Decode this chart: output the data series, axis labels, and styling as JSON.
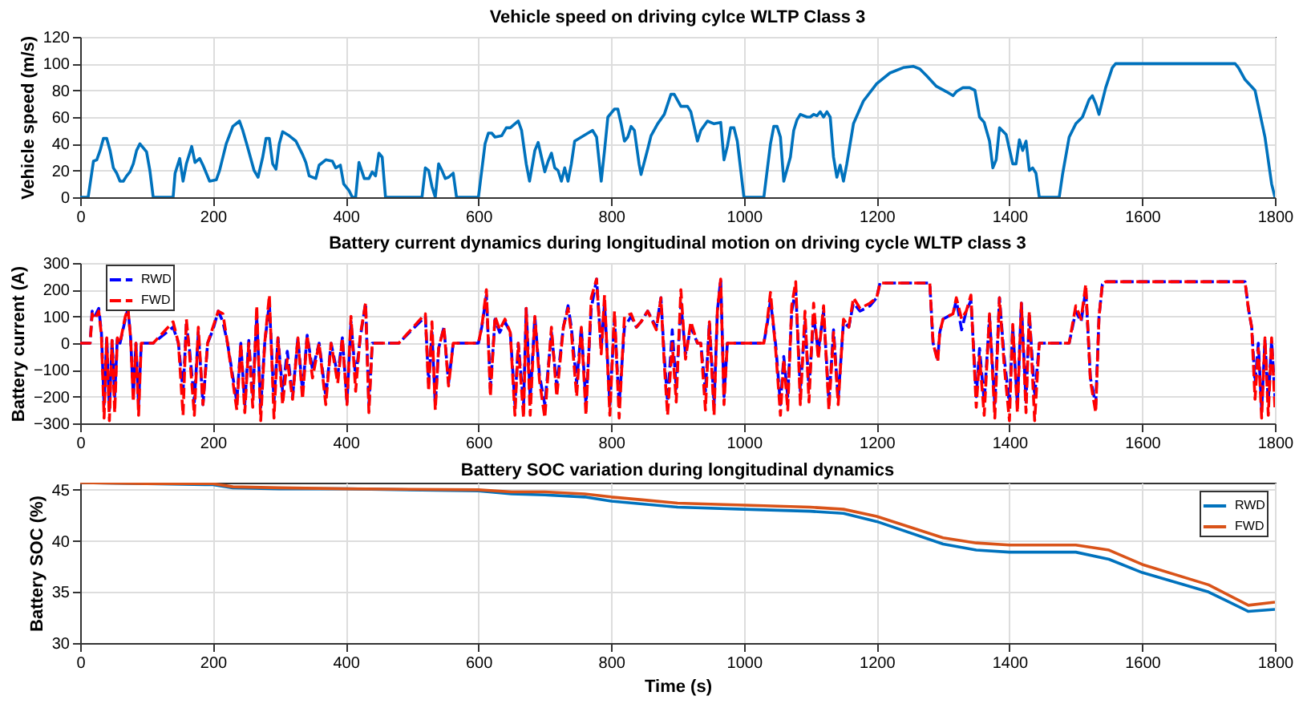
{
  "chart_data": [
    {
      "type": "line",
      "title": "Vehicle speed on driving cylce WLTP Class 3",
      "ylabel": "Vehicle speed (m/s)",
      "xlim": [
        0,
        1800
      ],
      "xticks": [
        0,
        200,
        400,
        600,
        800,
        1000,
        1200,
        1400,
        1600,
        1800
      ],
      "ylim": [
        0,
        120
      ],
      "yticks": [
        0,
        20,
        40,
        60,
        80,
        100,
        120
      ],
      "grid": true,
      "legend": false,
      "marker": "none",
      "series": [
        {
          "color": "#0072bd",
          "line_style": "solid",
          "x": [
            0,
            12,
            20,
            25,
            30,
            35,
            40,
            45,
            50,
            55,
            60,
            65,
            70,
            75,
            80,
            85,
            90,
            95,
            100,
            105,
            110,
            140,
            143,
            150,
            155,
            160,
            168,
            173,
            180,
            185,
            195,
            205,
            210,
            220,
            230,
            240,
            245,
            252,
            262,
            268,
            275,
            280,
            285,
            290,
            295,
            300,
            305,
            315,
            325,
            335,
            340,
            345,
            355,
            360,
            370,
            380,
            385,
            392,
            397,
            405,
            410,
            415,
            420,
            428,
            435,
            440,
            445,
            450,
            455,
            460,
            515,
            520,
            525,
            530,
            535,
            540,
            545,
            550,
            555,
            562,
            567,
            600,
            610,
            615,
            620,
            625,
            635,
            642,
            648,
            655,
            660,
            665,
            672,
            677,
            685,
            690,
            695,
            700,
            705,
            710,
            715,
            720,
            725,
            730,
            735,
            740,
            745,
            755,
            765,
            772,
            778,
            785,
            790,
            795,
            805,
            810,
            815,
            820,
            825,
            830,
            835,
            842,
            845,
            855,
            860,
            870,
            880,
            890,
            895,
            905,
            915,
            920,
            930,
            935,
            945,
            955,
            965,
            970,
            975,
            980,
            985,
            990,
            1000,
            1030,
            1040,
            1045,
            1050,
            1055,
            1060,
            1070,
            1075,
            1080,
            1085,
            1095,
            1100,
            1105,
            1110,
            1115,
            1120,
            1125,
            1130,
            1135,
            1140,
            1145,
            1150,
            1155,
            1165,
            1180,
            1200,
            1220,
            1240,
            1255,
            1265,
            1275,
            1290,
            1305,
            1315,
            1320,
            1330,
            1340,
            1348,
            1355,
            1362,
            1370,
            1375,
            1380,
            1385,
            1395,
            1405,
            1410,
            1415,
            1420,
            1425,
            1430,
            1435,
            1440,
            1445,
            1475,
            1480,
            1490,
            1500,
            1510,
            1520,
            1525,
            1530,
            1535,
            1545,
            1555,
            1560,
            1740,
            1745,
            1755,
            1770,
            1785,
            1795,
            1800
          ],
          "values": [
            0,
            0,
            27,
            28,
            35,
            44,
            44,
            35,
            22,
            18,
            12,
            12,
            16,
            19,
            25,
            35,
            40,
            37,
            34,
            20,
            0,
            0,
            18,
            29,
            12,
            25,
            38,
            26,
            29,
            24,
            12,
            13,
            20,
            40,
            53,
            57,
            50,
            38,
            20,
            15,
            30,
            44,
            44,
            25,
            21,
            40,
            49,
            46,
            42,
            32,
            26,
            16,
            14,
            24,
            28,
            27,
            22,
            24,
            10,
            5,
            0,
            0,
            26,
            14,
            14,
            19,
            16,
            33,
            30,
            0,
            0,
            22,
            20,
            8,
            0,
            25,
            20,
            14,
            15,
            18,
            0,
            0,
            40,
            48,
            48,
            45,
            46,
            52,
            52,
            55,
            57,
            50,
            25,
            12,
            35,
            41,
            30,
            19,
            27,
            33,
            22,
            20,
            12,
            22,
            12,
            25,
            42,
            45,
            48,
            50,
            45,
            12,
            35,
            60,
            66,
            66,
            55,
            42,
            45,
            53,
            50,
            25,
            17,
            36,
            46,
            55,
            62,
            77,
            77,
            68,
            68,
            64,
            42,
            50,
            57,
            55,
            56,
            28,
            38,
            52,
            52,
            42,
            0,
            0,
            40,
            53,
            53,
            45,
            12,
            30,
            50,
            58,
            62,
            60,
            60,
            62,
            61,
            64,
            60,
            64,
            60,
            30,
            15,
            24,
            12,
            25,
            55,
            72,
            85,
            93,
            97,
            98,
            96,
            91,
            83,
            79,
            76,
            79,
            82,
            82,
            80,
            60,
            56,
            42,
            22,
            28,
            52,
            47,
            25,
            25,
            43,
            35,
            42,
            20,
            22,
            18,
            0,
            0,
            17,
            45,
            55,
            60,
            73,
            76,
            70,
            62,
            82,
            97,
            100,
            100,
            97,
            88,
            80,
            45,
            10,
            0
          ]
        }
      ]
    },
    {
      "type": "line",
      "title": "Battery current dynamics during longitudinal motion on driving cycle WLTP class 3",
      "ylabel": "Battery current (A)",
      "xlim": [
        0,
        1800
      ],
      "xticks": [
        0,
        200,
        400,
        600,
        800,
        1000,
        1200,
        1400,
        1600,
        1800
      ],
      "ylim": [
        -300,
        300
      ],
      "yticks": [
        -300,
        -200,
        -100,
        0,
        100,
        200,
        300
      ],
      "grid": true,
      "legend": "top left",
      "marker": "none",
      "x": [
        0,
        15,
        18,
        22,
        28,
        32,
        36,
        40,
        44,
        48,
        52,
        56,
        60,
        68,
        72,
        76,
        80,
        84,
        88,
        92,
        110,
        140,
        148,
        155,
        160,
        165,
        172,
        178,
        185,
        192,
        200,
        208,
        215,
        222,
        236,
        242,
        248,
        254,
        260,
        266,
        272,
        278,
        285,
        292,
        298,
        305,
        312,
        320,
        328,
        335,
        342,
        350,
        360,
        370,
        378,
        388,
        395,
        402,
        408,
        415,
        422,
        430,
        435,
        440,
        480,
        520,
        525,
        530,
        535,
        540,
        548,
        555,
        562,
        600,
        605,
        612,
        618,
        625,
        632,
        640,
        648,
        655,
        660,
        668,
        672,
        678,
        685,
        692,
        700,
        710,
        718,
        728,
        735,
        740,
        748,
        755,
        762,
        770,
        778,
        785,
        790,
        798,
        805,
        812,
        820,
        830,
        838,
        845,
        855,
        868,
        875,
        880,
        885,
        892,
        898,
        905,
        912,
        920,
        930,
        935,
        942,
        948,
        955,
        960,
        965,
        970,
        975,
        1030,
        1035,
        1040,
        1048,
        1055,
        1060,
        1066,
        1072,
        1078,
        1085,
        1092,
        1098,
        1105,
        1112,
        1120,
        1128,
        1135,
        1142,
        1150,
        1158,
        1165,
        1175,
        1190,
        1200,
        1205,
        1280,
        1285,
        1292,
        1295,
        1300,
        1315,
        1320,
        1328,
        1335,
        1342,
        1350,
        1355,
        1362,
        1370,
        1378,
        1385,
        1392,
        1400,
        1405,
        1412,
        1418,
        1425,
        1430,
        1438,
        1445,
        1490,
        1500,
        1508,
        1515,
        1522,
        1530,
        1535,
        1540,
        1545,
        1755,
        1760,
        1765,
        1770,
        1775,
        1780,
        1785,
        1790,
        1795,
        1800
      ],
      "series": [
        {
          "name": "RWD",
          "color": "#0000ff",
          "line_style": "dashed",
          "values": [
            0,
            0,
            120,
            100,
            130,
            40,
            -230,
            20,
            -250,
            10,
            -200,
            20,
            0,
            90,
            130,
            20,
            -200,
            0,
            -230,
            0,
            0,
            60,
            0,
            -180,
            70,
            -30,
            -220,
            40,
            -230,
            0,
            50,
            120,
            80,
            0,
            -220,
            0,
            -230,
            10,
            -200,
            100,
            -240,
            0,
            150,
            -220,
            20,
            -180,
            -30,
            -200,
            20,
            -180,
            30,
            -100,
            0,
            -200,
            0,
            -120,
            20,
            -220,
            80,
            -130,
            20,
            150,
            -230,
            0,
            0,
            100,
            -150,
            40,
            -230,
            -20,
            60,
            -150,
            0,
            0,
            60,
            180,
            -170,
            90,
            40,
            80,
            40,
            -230,
            0,
            -230,
            130,
            -210,
            100,
            -120,
            -230,
            40,
            -160,
            60,
            140,
            60,
            -150,
            60,
            -230,
            130,
            240,
            -20,
            150,
            -230,
            90,
            -230,
            60,
            100,
            60,
            80,
            120,
            60,
            170,
            -50,
            -220,
            50,
            -170,
            150,
            -40,
            60,
            0,
            0,
            -180,
            80,
            -230,
            120,
            240,
            -200,
            0,
            0,
            70,
            160,
            -10,
            -230,
            -50,
            -200,
            120,
            200,
            -180,
            80,
            -170,
            100,
            -30,
            120,
            -220,
            50,
            -210,
            80,
            60,
            150,
            120,
            140,
            170,
            225,
            225,
            0,
            -60,
            40,
            90,
            110,
            160,
            50,
            120,
            160,
            -200,
            -20,
            -220,
            100,
            -230,
            170,
            -50,
            -230,
            60,
            -230,
            150,
            -220,
            110,
            -200,
            0,
            0,
            120,
            80,
            200,
            -130,
            -230,
            100,
            220,
            230,
            230,
            130,
            60,
            -150,
            0,
            -250,
            10,
            -220,
            10,
            -200
          ]
        },
        {
          "name": "FWD",
          "color": "#ff0000",
          "line_style": "dashed",
          "values": [
            0,
            0,
            110,
            90,
            120,
            30,
            -280,
            20,
            -290,
            10,
            -260,
            20,
            0,
            100,
            130,
            20,
            -220,
            0,
            -270,
            0,
            0,
            80,
            0,
            -270,
            90,
            -50,
            -270,
            60,
            -230,
            0,
            60,
            120,
            110,
            0,
            -250,
            0,
            -260,
            0,
            -240,
            140,
            -290,
            0,
            180,
            -280,
            20,
            -230,
            -60,
            -210,
            20,
            -210,
            30,
            -130,
            0,
            -230,
            0,
            -150,
            20,
            -230,
            100,
            -180,
            30,
            150,
            -260,
            0,
            0,
            110,
            -180,
            80,
            -250,
            -20,
            60,
            -160,
            0,
            0,
            60,
            200,
            -200,
            100,
            50,
            90,
            40,
            -270,
            0,
            -280,
            130,
            -270,
            100,
            -140,
            -280,
            60,
            -200,
            60,
            130,
            40,
            -200,
            60,
            -270,
            170,
            240,
            -40,
            180,
            -270,
            120,
            -280,
            100,
            110,
            60,
            80,
            120,
            50,
            170,
            -80,
            -270,
            0,
            -220,
            200,
            -60,
            80,
            0,
            0,
            -250,
            80,
            -270,
            120,
            240,
            -230,
            0,
            0,
            80,
            190,
            -30,
            -270,
            -60,
            -250,
            140,
            230,
            -230,
            120,
            -220,
            150,
            -60,
            140,
            -250,
            40,
            -230,
            90,
            60,
            170,
            130,
            150,
            170,
            225,
            225,
            0,
            -70,
            40,
            90,
            110,
            170,
            90,
            120,
            180,
            -240,
            -50,
            -270,
            110,
            -280,
            170,
            -80,
            -290,
            70,
            -260,
            150,
            -260,
            120,
            -290,
            0,
            0,
            140,
            90,
            220,
            -140,
            -260,
            100,
            220,
            230,
            230,
            130,
            60,
            -210,
            -20,
            -280,
            20,
            -270,
            20,
            -240
          ]
        }
      ]
    },
    {
      "type": "line",
      "title": "Battery SOC variation during longitudinal dynamics",
      "xlabel": "Time (s)",
      "ylabel": "Battery SOC (%)",
      "xlim": [
        0,
        1800
      ],
      "xticks": [
        0,
        200,
        400,
        600,
        800,
        1000,
        1200,
        1400,
        1600,
        1800
      ],
      "ylim": [
        30,
        45.7
      ],
      "yticks": [
        30,
        35,
        40,
        45
      ],
      "grid": true,
      "legend": "top right",
      "marker": "none",
      "x": [
        0,
        100,
        200,
        230,
        300,
        400,
        600,
        650,
        700,
        760,
        800,
        850,
        900,
        1000,
        1050,
        1100,
        1150,
        1200,
        1300,
        1350,
        1400,
        1500,
        1550,
        1600,
        1700,
        1760,
        1800
      ],
      "series": [
        {
          "name": "RWD",
          "color": "#0072bd",
          "line_style": "solid",
          "values": [
            45.7,
            45.6,
            45.5,
            45.2,
            45.1,
            45.1,
            44.9,
            44.6,
            44.5,
            44.3,
            43.9,
            43.6,
            43.3,
            43.1,
            43.0,
            42.9,
            42.7,
            41.9,
            39.7,
            39.1,
            38.9,
            38.9,
            38.2,
            36.9,
            35.0,
            33.1,
            33.3
          ]
        },
        {
          "name": "FWD",
          "color": "#d95319",
          "line_style": "solid",
          "values": [
            45.7,
            45.6,
            45.6,
            45.3,
            45.2,
            45.1,
            45.0,
            44.8,
            44.8,
            44.6,
            44.3,
            44.0,
            43.7,
            43.5,
            43.4,
            43.3,
            43.1,
            42.4,
            40.3,
            39.8,
            39.6,
            39.6,
            39.1,
            37.7,
            35.7,
            33.7,
            34.0
          ]
        }
      ]
    }
  ]
}
